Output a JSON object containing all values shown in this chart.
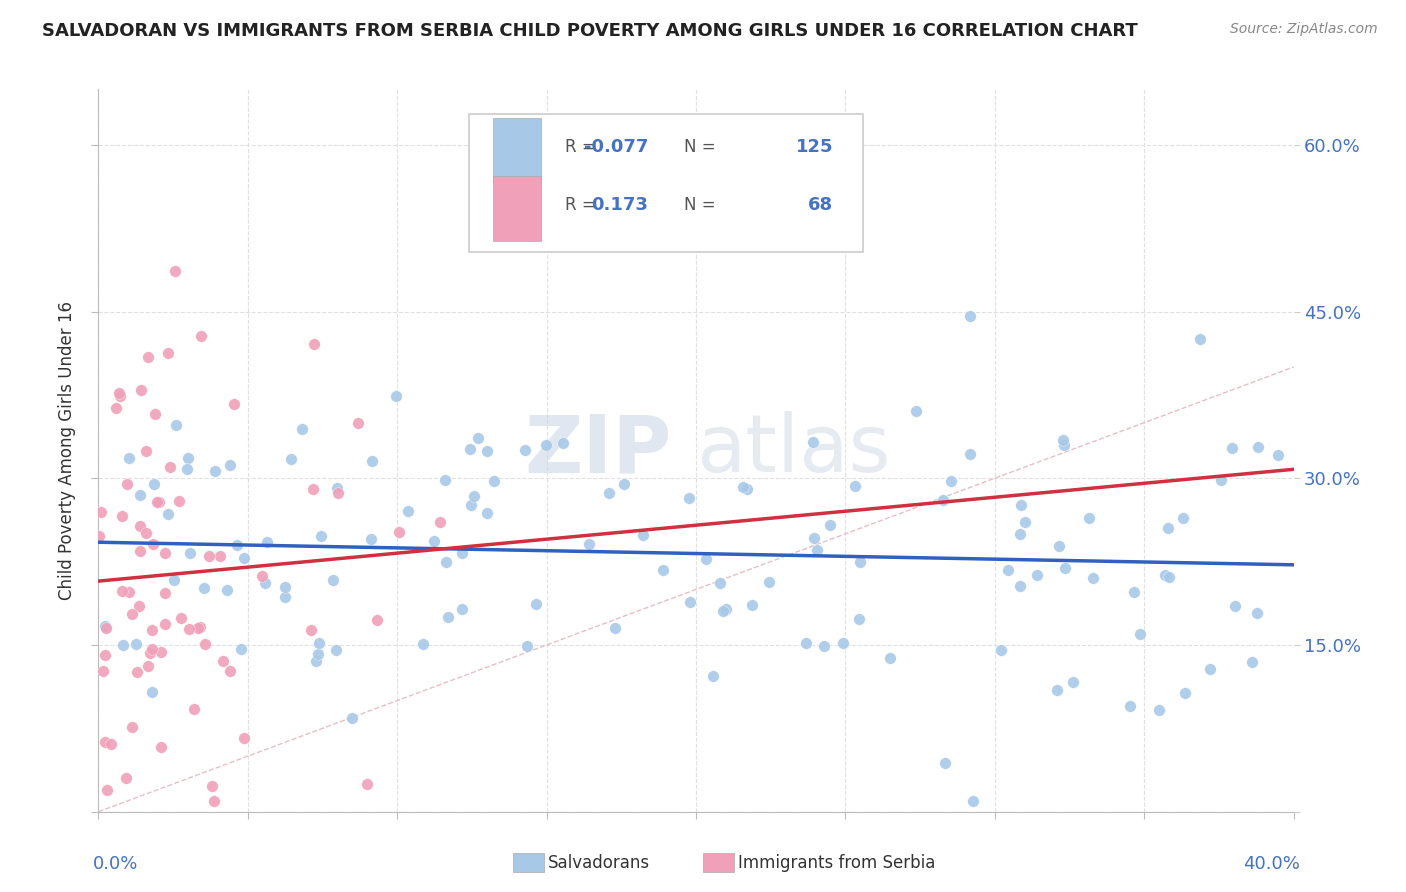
{
  "title": "SALVADORAN VS IMMIGRANTS FROM SERBIA CHILD POVERTY AMONG GIRLS UNDER 16 CORRELATION CHART",
  "source": "Source: ZipAtlas.com",
  "ylabel": "Child Poverty Among Girls Under 16",
  "yticks": [
    0.0,
    0.15,
    0.3,
    0.45,
    0.6
  ],
  "ytick_labels": [
    "",
    "15.0%",
    "30.0%",
    "45.0%",
    "60.0%"
  ],
  "xlim": [
    0.0,
    0.4
  ],
  "ylim": [
    0.0,
    0.65
  ],
  "R_salvadoran": -0.077,
  "N_salvadoran": 125,
  "R_serbia": 0.173,
  "N_serbia": 68,
  "color_salvadoran": "#a8c8e8",
  "color_serbia": "#f0a0b8",
  "color_line_salvadoran": "#3060c0",
  "color_line_serbia": "#d03040",
  "color_diagonal": "#e0b0b8",
  "legend_salvadoran": "Salvadorans",
  "legend_serbia": "Immigrants from Serbia",
  "seed_sal": 42,
  "seed_ser": 7
}
